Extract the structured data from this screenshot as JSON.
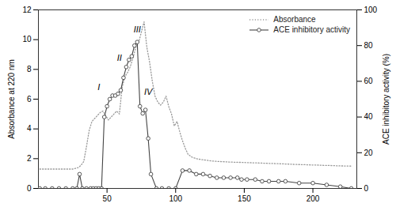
{
  "chart_data": {
    "type": "line",
    "ylabel": "Absorbance at 220 nm",
    "y2label": "ACE inhibitory activity (%)",
    "xlim": [
      0,
      232
    ],
    "xticks": [
      50,
      100,
      150,
      200
    ],
    "ylim": [
      0,
      12
    ],
    "yticks": [
      0,
      2,
      4,
      6,
      8,
      10,
      12
    ],
    "y2lim": [
      0,
      100
    ],
    "y2ticks": [
      0,
      20,
      40,
      60,
      80,
      100
    ],
    "legend": "upper right",
    "series": [
      {
        "name": "Absorbance",
        "color": "#999999",
        "line_style": "dotted",
        "x": [
          1,
          5,
          10,
          15,
          20,
          25,
          27,
          29,
          31,
          33,
          35,
          37,
          39,
          41,
          43,
          45,
          47,
          49,
          51,
          53,
          55,
          57,
          59,
          61,
          63,
          65,
          67,
          69,
          71,
          73,
          75,
          77,
          79,
          81,
          83,
          85,
          87,
          89,
          91,
          93,
          95,
          97,
          99,
          101,
          103,
          105,
          107,
          109,
          112,
          115,
          118,
          122,
          126,
          130,
          134,
          138,
          143,
          148,
          153,
          158,
          163,
          168,
          173,
          178,
          183,
          188,
          193,
          198,
          203,
          208,
          213,
          218,
          223,
          228
        ],
        "values": [
          1.3,
          1.3,
          1.3,
          1.3,
          1.3,
          1.3,
          1.35,
          1.4,
          1.55,
          1.8,
          2.8,
          3.9,
          4.5,
          4.7,
          4.9,
          5.1,
          5.2,
          4.9,
          4.6,
          4.8,
          5.0,
          5.2,
          5.0,
          6.8,
          7.5,
          7.8,
          8.2,
          8.8,
          9.5,
          9.8,
          10.5,
          11.2,
          9.5,
          8.5,
          7.2,
          6.2,
          5.8,
          5.6,
          5.8,
          6.2,
          5.5,
          5.0,
          4.2,
          4.5,
          3.8,
          3.2,
          2.7,
          2.3,
          2.1,
          2.0,
          1.95,
          1.9,
          1.85,
          1.82,
          1.8,
          1.78,
          1.76,
          1.75,
          1.73,
          1.72,
          1.7,
          1.68,
          1.67,
          1.65,
          1.63,
          1.61,
          1.6,
          1.58,
          1.57,
          1.55,
          1.54,
          1.52,
          1.51,
          1.5
        ]
      },
      {
        "name": "ACE inhibitory activity",
        "color": "#444444",
        "line_style": "solid",
        "marker": "o",
        "axis": "y2",
        "x": [
          1,
          5,
          10,
          15,
          20,
          25,
          28,
          30,
          32,
          35,
          38,
          40,
          42,
          44,
          46,
          48,
          50,
          52,
          54,
          56,
          58,
          60,
          62,
          64,
          66,
          68,
          70,
          72,
          74,
          76,
          78,
          80,
          82,
          86,
          90,
          95,
          100,
          105,
          110,
          115,
          120,
          125,
          130,
          135,
          140,
          145,
          148,
          152,
          158,
          163,
          168,
          175,
          180,
          190,
          200,
          210,
          220,
          228
        ],
        "values": [
          0,
          0,
          0,
          0,
          0,
          0,
          0,
          8,
          0,
          0,
          0,
          0,
          0,
          0,
          0,
          40,
          46,
          50,
          52,
          52,
          53,
          55,
          62,
          68,
          72,
          74,
          80,
          82,
          46,
          42,
          44,
          28,
          8,
          0,
          0,
          0,
          0,
          10,
          10,
          8,
          8,
          7,
          6,
          6,
          6,
          6,
          5,
          5,
          5,
          4,
          4,
          4,
          4,
          3,
          3,
          2,
          1,
          0
        ]
      }
    ],
    "annotations": [
      {
        "text": "I",
        "x": 44,
        "y": 6.6
      },
      {
        "text": "II",
        "x": 59,
        "y": 8.6
      },
      {
        "text": "III",
        "x": 72,
        "y": 10.5
      },
      {
        "text": "IV",
        "x": 80,
        "y": 6.3
      }
    ]
  }
}
